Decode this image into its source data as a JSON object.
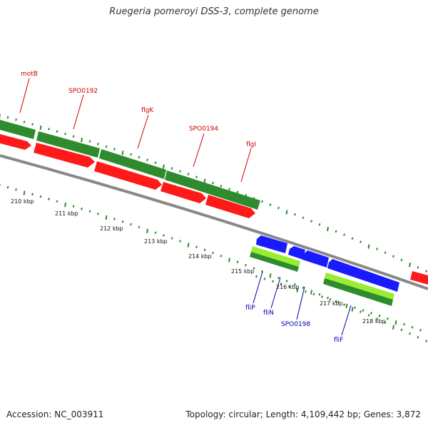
{
  "title": "Ruegeria pomeroyi DSS-3, complete genome",
  "footer": {
    "accession": "Accession: NC_003911",
    "topology": "Topology: circular; Length: 4,109,442 bp; Genes: 3,872"
  },
  "colors": {
    "forward_cds": "#2e8b2e",
    "forward_gene": "#ff1a1a",
    "reverse_gene": "#1a1aff",
    "reverse_cds_light": "#99ee33",
    "reverse_cds_dark": "#2e8b2e",
    "backbone": "#888888",
    "ticks": "#2e8b2e",
    "forward_label": "#cc0000",
    "reverse_label": "#0000aa"
  },
  "scale_labels": [
    "210 kbp",
    "211 kbp",
    "212 kbp",
    "213 kbp",
    "214 kbp",
    "215 kbp",
    "216 kbp",
    "217 kbp",
    "218 kbp"
  ],
  "forward_genes": [
    {
      "name": "motB",
      "color": "red"
    },
    {
      "name": "SPO0192",
      "color": "red"
    },
    {
      "name": "flgK",
      "color": "red"
    },
    {
      "name": "SPO0194",
      "color": "red"
    },
    {
      "name": "flgI",
      "color": "red"
    }
  ],
  "reverse_genes": [
    {
      "name": "fliP",
      "color": "blue"
    },
    {
      "name": "fliN",
      "color": "blue"
    },
    {
      "name": "SPO0198",
      "color": "blue"
    },
    {
      "name": "fliF",
      "color": "blue"
    }
  ]
}
